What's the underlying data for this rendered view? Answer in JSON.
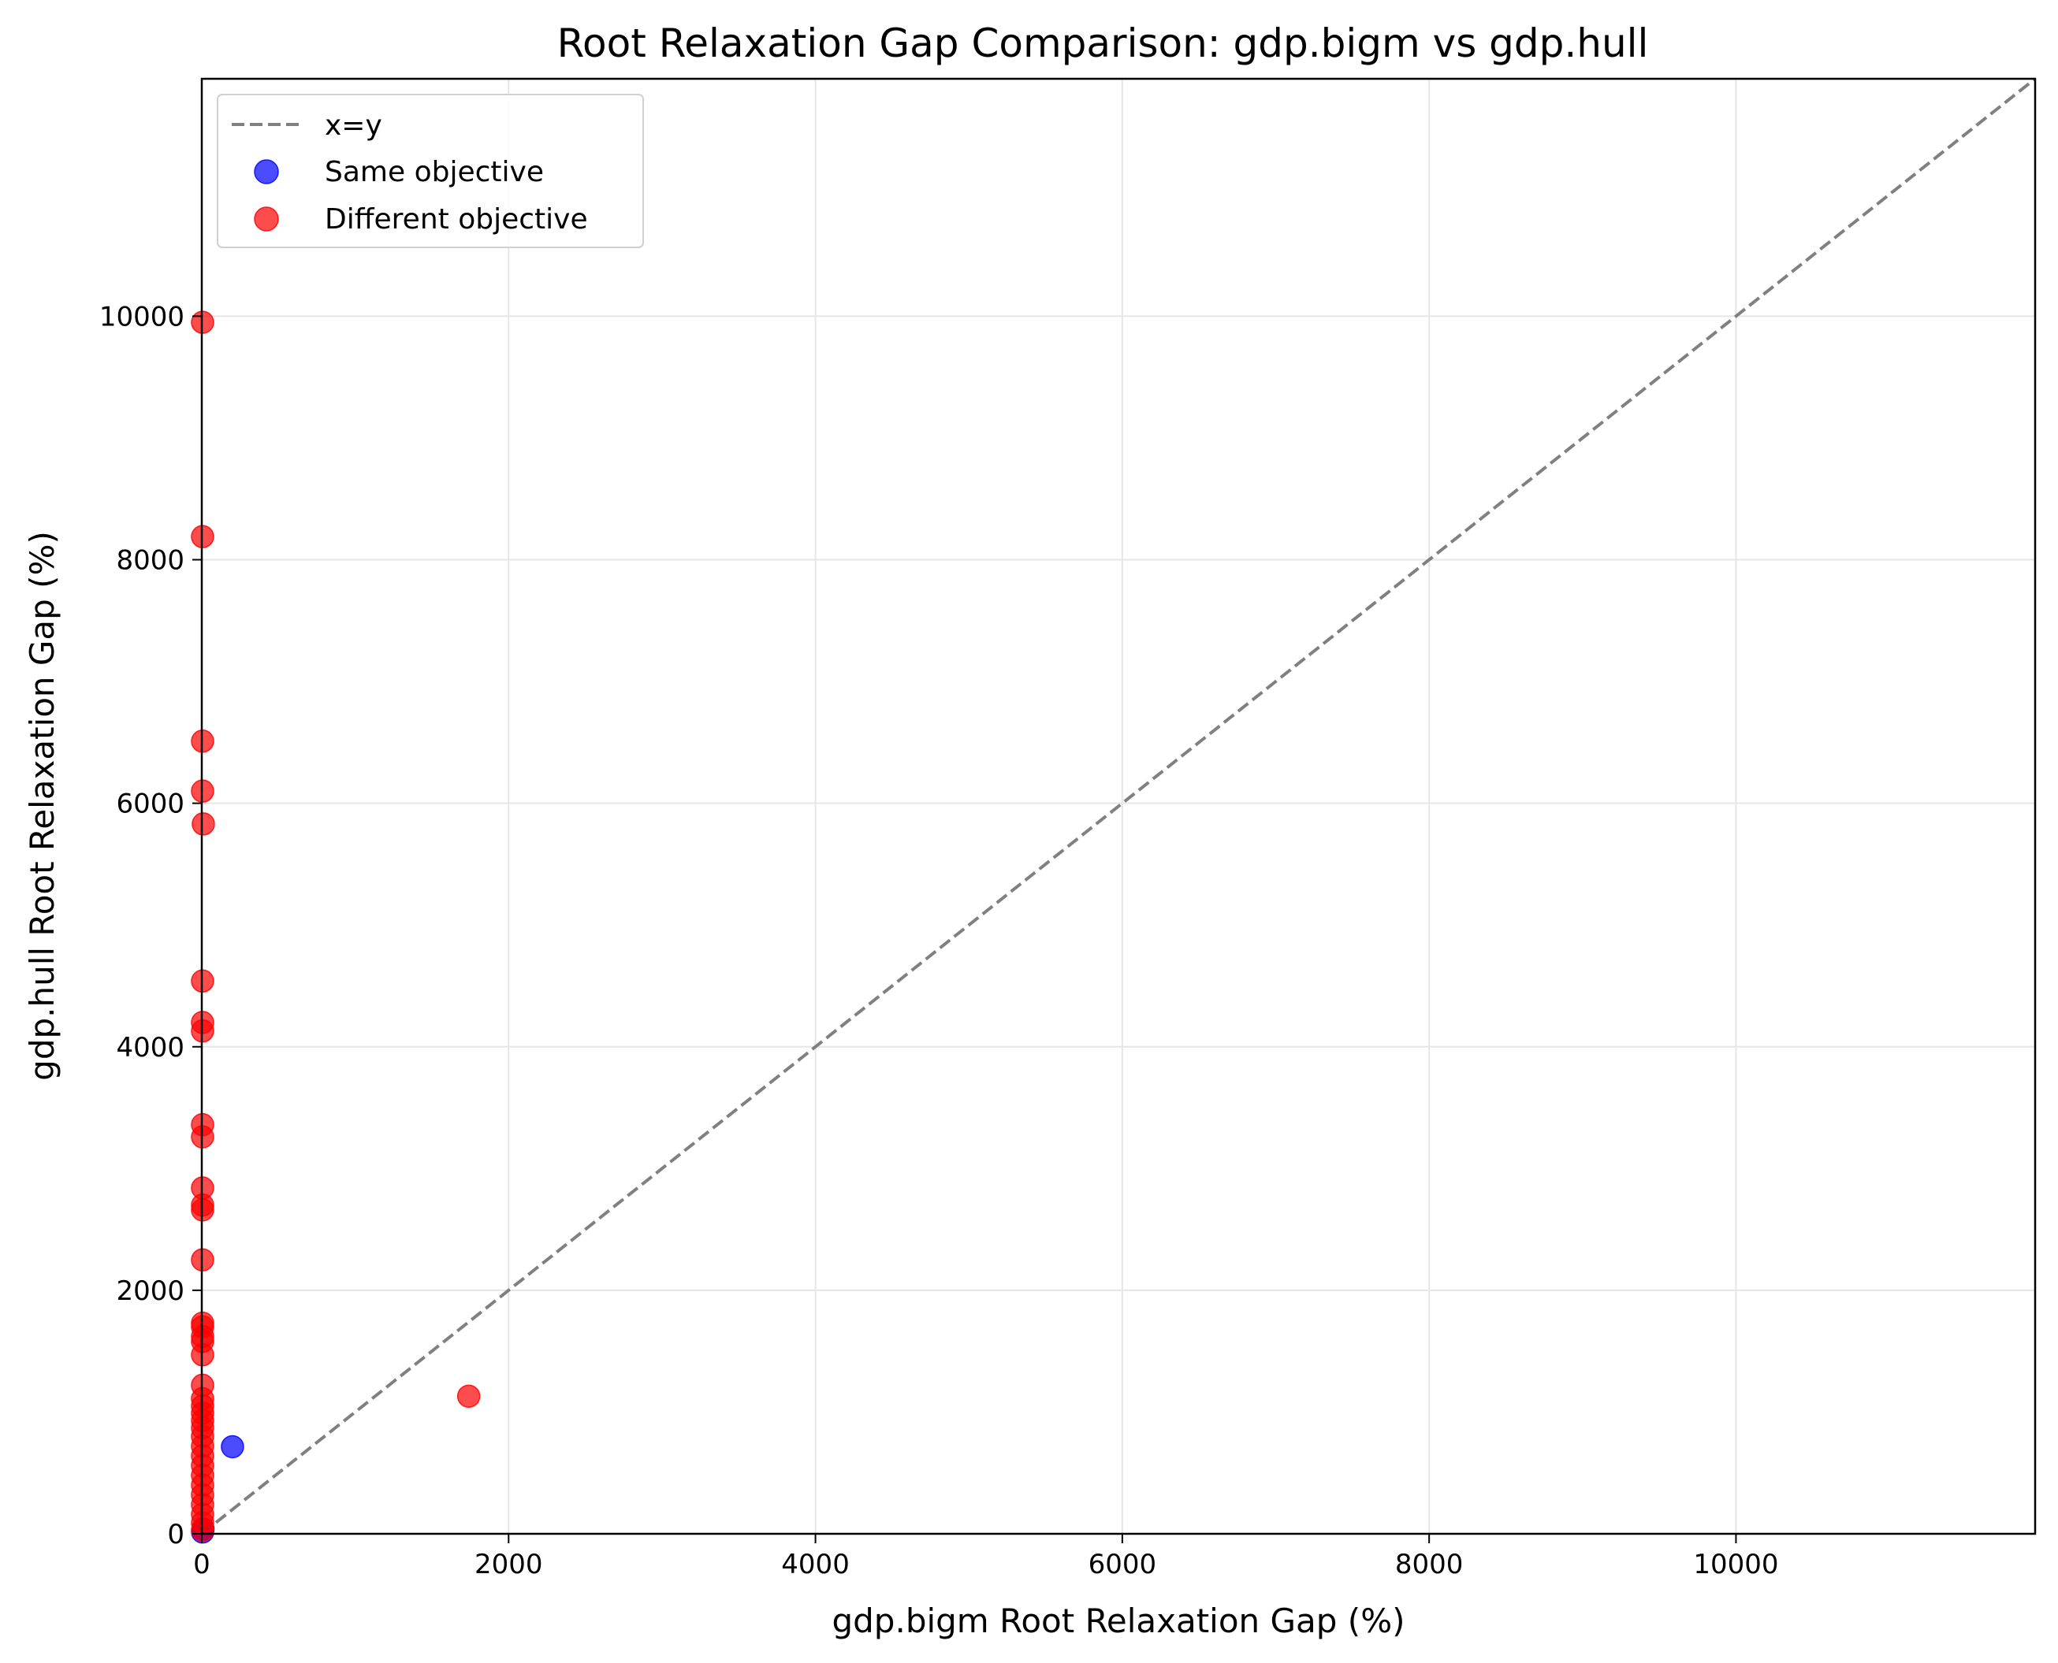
{
  "chart_data": {
    "type": "scatter",
    "title": "Root Relaxation Gap Comparison: gdp.bigm vs gdp.hull",
    "xlabel": "gdp.bigm Root Relaxation Gap (%)",
    "ylabel": "gdp.hull Root Relaxation Gap (%)",
    "xlim": [
      0,
      11950
    ],
    "ylim": [
      0,
      11950
    ],
    "xticks": [
      0,
      2000,
      4000,
      6000,
      8000,
      10000
    ],
    "yticks": [
      0,
      2000,
      4000,
      6000,
      8000,
      10000
    ],
    "grid": true,
    "legend_position": "top-left",
    "reference_line": {
      "label": "x=y",
      "style": "dashed",
      "color": "#808080"
    },
    "series": [
      {
        "name": "Same objective",
        "color": "#0000ff",
        "x": [
          200,
          5,
          8
        ],
        "y": [
          715,
          15,
          40
        ]
      },
      {
        "name": "Different objective",
        "color": "#ff0000",
        "x": [
          5,
          5,
          5,
          5,
          10,
          5,
          5,
          5,
          5,
          5,
          5,
          5,
          5,
          5,
          5,
          5,
          5,
          5,
          5,
          5,
          5,
          5,
          5,
          5,
          5,
          5,
          5,
          5,
          5,
          5,
          5,
          5,
          5,
          5,
          5,
          5,
          1740
        ],
        "y": [
          9950,
          8190,
          6510,
          6100,
          5830,
          4540,
          4200,
          4130,
          3360,
          3260,
          2840,
          2700,
          2660,
          2250,
          1730,
          1700,
          1620,
          1580,
          1470,
          1220,
          1110,
          1050,
          990,
          930,
          870,
          800,
          720,
          640,
          560,
          480,
          400,
          320,
          240,
          160,
          90,
          30,
          1130
        ]
      }
    ]
  }
}
